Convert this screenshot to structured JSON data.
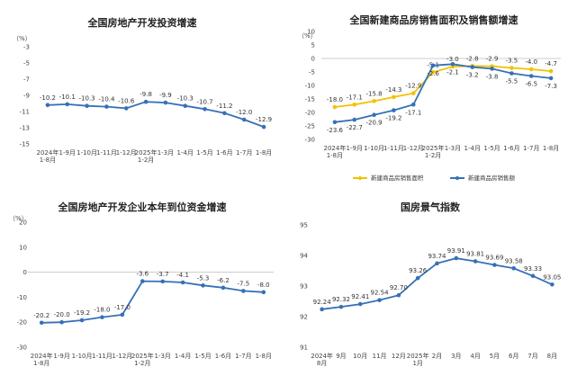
{
  "chart_data": [
    {
      "type": "line",
      "title": "全国房地产开发投资增速",
      "unit": "（%）",
      "categories": [
        "2024年\n1-8月",
        "1-9月",
        "1-10月",
        "1-11月",
        "1-12月",
        "2025年\n1-2月",
        "1-3月",
        "1-4月",
        "1-5月",
        "1-6月",
        "1-7月",
        "1-8月"
      ],
      "series": [
        {
          "values": [
            -10.2,
            -10.1,
            -10.3,
            -10.4,
            -10.6,
            -9.8,
            -9.9,
            -10.3,
            -10.7,
            -11.2,
            -12.0,
            -12.9
          ],
          "color": "#3670b8"
        }
      ],
      "yticks": [
        -3,
        -5,
        -7,
        -9,
        -11,
        -13,
        -15
      ],
      "ylim": [
        -15,
        -3
      ],
      "grid": false,
      "label_position": "above"
    },
    {
      "type": "line",
      "title": "全国新建商品房销售面积及销售额增速",
      "unit": "（%）",
      "categories": [
        "2024年\n1-8月",
        "1-9月",
        "1-10月",
        "1-11月",
        "1-12月",
        "2025年\n1-2月",
        "1-3月",
        "1-4月",
        "1-5月",
        "1-6月",
        "1-7月",
        "1-8月"
      ],
      "series": [
        {
          "name": "新建商品房销售面积",
          "values": [
            -18.0,
            -17.1,
            -15.8,
            -14.3,
            -12.9,
            -5.1,
            -3.0,
            -2.8,
            -2.9,
            -3.5,
            -4.0,
            -4.7
          ],
          "color": "#f2c200",
          "label_position": "above"
        },
        {
          "name": "新建商品房销售额",
          "values": [
            -23.6,
            -22.7,
            -20.9,
            -19.2,
            -17.1,
            -2.6,
            -2.1,
            -3.2,
            -3.8,
            -5.5,
            -6.5,
            -7.3
          ],
          "color": "#3670b8",
          "label_position": "below"
        }
      ],
      "yticks": [
        10,
        5,
        0,
        -5,
        -10,
        -15,
        -20,
        -25,
        -30
      ],
      "ylim": [
        -30,
        10
      ],
      "grid": false,
      "legend": "bottom"
    },
    {
      "type": "line",
      "title": "全国房地产开发企业本年到位资金增速",
      "unit": "（%）",
      "categories": [
        "2024年\n1-8月",
        "1-9月",
        "1-10月",
        "1-11月",
        "1-12月",
        "2025年\n1-2月",
        "1-3月",
        "1-4月",
        "1-5月",
        "1-6月",
        "1-7月",
        "1-8月"
      ],
      "series": [
        {
          "values": [
            -20.2,
            -20.0,
            -19.2,
            -18.0,
            -17.0,
            -3.6,
            -3.7,
            -4.1,
            -5.3,
            -6.2,
            -7.5,
            -8.0
          ],
          "color": "#3670b8"
        }
      ],
      "yticks": [
        20,
        10,
        0,
        -10,
        -20,
        -30
      ],
      "ylim": [
        -30,
        20
      ],
      "grid": false,
      "label_position": "above"
    },
    {
      "type": "line",
      "title": "国房景气指数",
      "categories": [
        "2024年\n8月",
        "9月",
        "10月",
        "11月",
        "12月",
        "2025年\n1月",
        "2月",
        "3月",
        "4月",
        "5月",
        "6月",
        "7月",
        "8月"
      ],
      "series": [
        {
          "values": [
            92.24,
            92.32,
            92.41,
            92.54,
            92.7,
            93.26,
            93.74,
            93.91,
            93.81,
            93.69,
            93.58,
            93.33,
            93.05
          ],
          "color": "#3670b8"
        }
      ],
      "yticks": [
        95,
        94,
        93,
        92,
        91
      ],
      "ylim": [
        91,
        95
      ],
      "grid": false,
      "label_position": "above"
    }
  ]
}
